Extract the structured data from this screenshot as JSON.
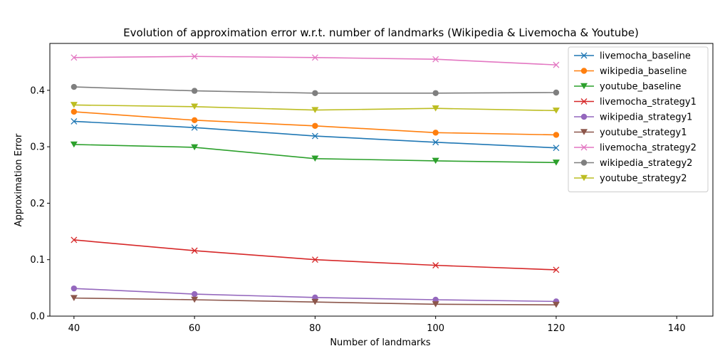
{
  "chart_data": {
    "type": "line",
    "title": "Evolution of approximation error w.r.t. number of landmarks (Wikipedia & Livemocha & Youtube)",
    "xlabel": "Number of landmarks",
    "ylabel": "Approximation Error",
    "x": [
      40,
      60,
      80,
      100,
      120
    ],
    "xlim": [
      36,
      146
    ],
    "ylim": [
      0,
      0.483
    ],
    "xticks": [
      40,
      60,
      80,
      100,
      120,
      140
    ],
    "yticks": [
      0.0,
      0.1,
      0.2,
      0.3,
      0.4
    ],
    "xtick_labels": [
      "40",
      "60",
      "80",
      "100",
      "120",
      "140"
    ],
    "ytick_labels": [
      "0.0",
      "0.1",
      "0.2",
      "0.3",
      "0.4"
    ],
    "grid": false,
    "legend_position": "top-right",
    "series": [
      {
        "name": "livemocha_baseline",
        "color": "#1f77b4",
        "marker": "x",
        "values": [
          0.345,
          0.334,
          0.319,
          0.308,
          0.298
        ]
      },
      {
        "name": "wikipedia_baseline",
        "color": "#ff7f0e",
        "marker": "o",
        "values": [
          0.362,
          0.347,
          0.337,
          0.325,
          0.321
        ]
      },
      {
        "name": "youtube_baseline",
        "color": "#2ca02c",
        "marker": "v",
        "values": [
          0.304,
          0.299,
          0.279,
          0.275,
          0.272
        ]
      },
      {
        "name": "livemocha_strategy1",
        "color": "#d62728",
        "marker": "x",
        "values": [
          0.135,
          0.116,
          0.1,
          0.09,
          0.082
        ]
      },
      {
        "name": "wikipedia_strategy1",
        "color": "#9467bd",
        "marker": "o",
        "values": [
          0.049,
          0.039,
          0.033,
          0.029,
          0.026
        ]
      },
      {
        "name": "youtube_strategy1",
        "color": "#8c564b",
        "marker": "v",
        "values": [
          0.032,
          0.029,
          0.025,
          0.021,
          0.02
        ]
      },
      {
        "name": "livemocha_strategy2",
        "color": "#e377c2",
        "marker": "x",
        "values": [
          0.458,
          0.46,
          0.458,
          0.455,
          0.445
        ]
      },
      {
        "name": "wikipedia_strategy2",
        "color": "#7f7f7f",
        "marker": "o",
        "values": [
          0.406,
          0.399,
          0.395,
          0.395,
          0.396
        ]
      },
      {
        "name": "youtube_strategy2",
        "color": "#bcbd22",
        "marker": "v",
        "values": [
          0.374,
          0.371,
          0.365,
          0.368,
          0.364
        ]
      }
    ]
  }
}
